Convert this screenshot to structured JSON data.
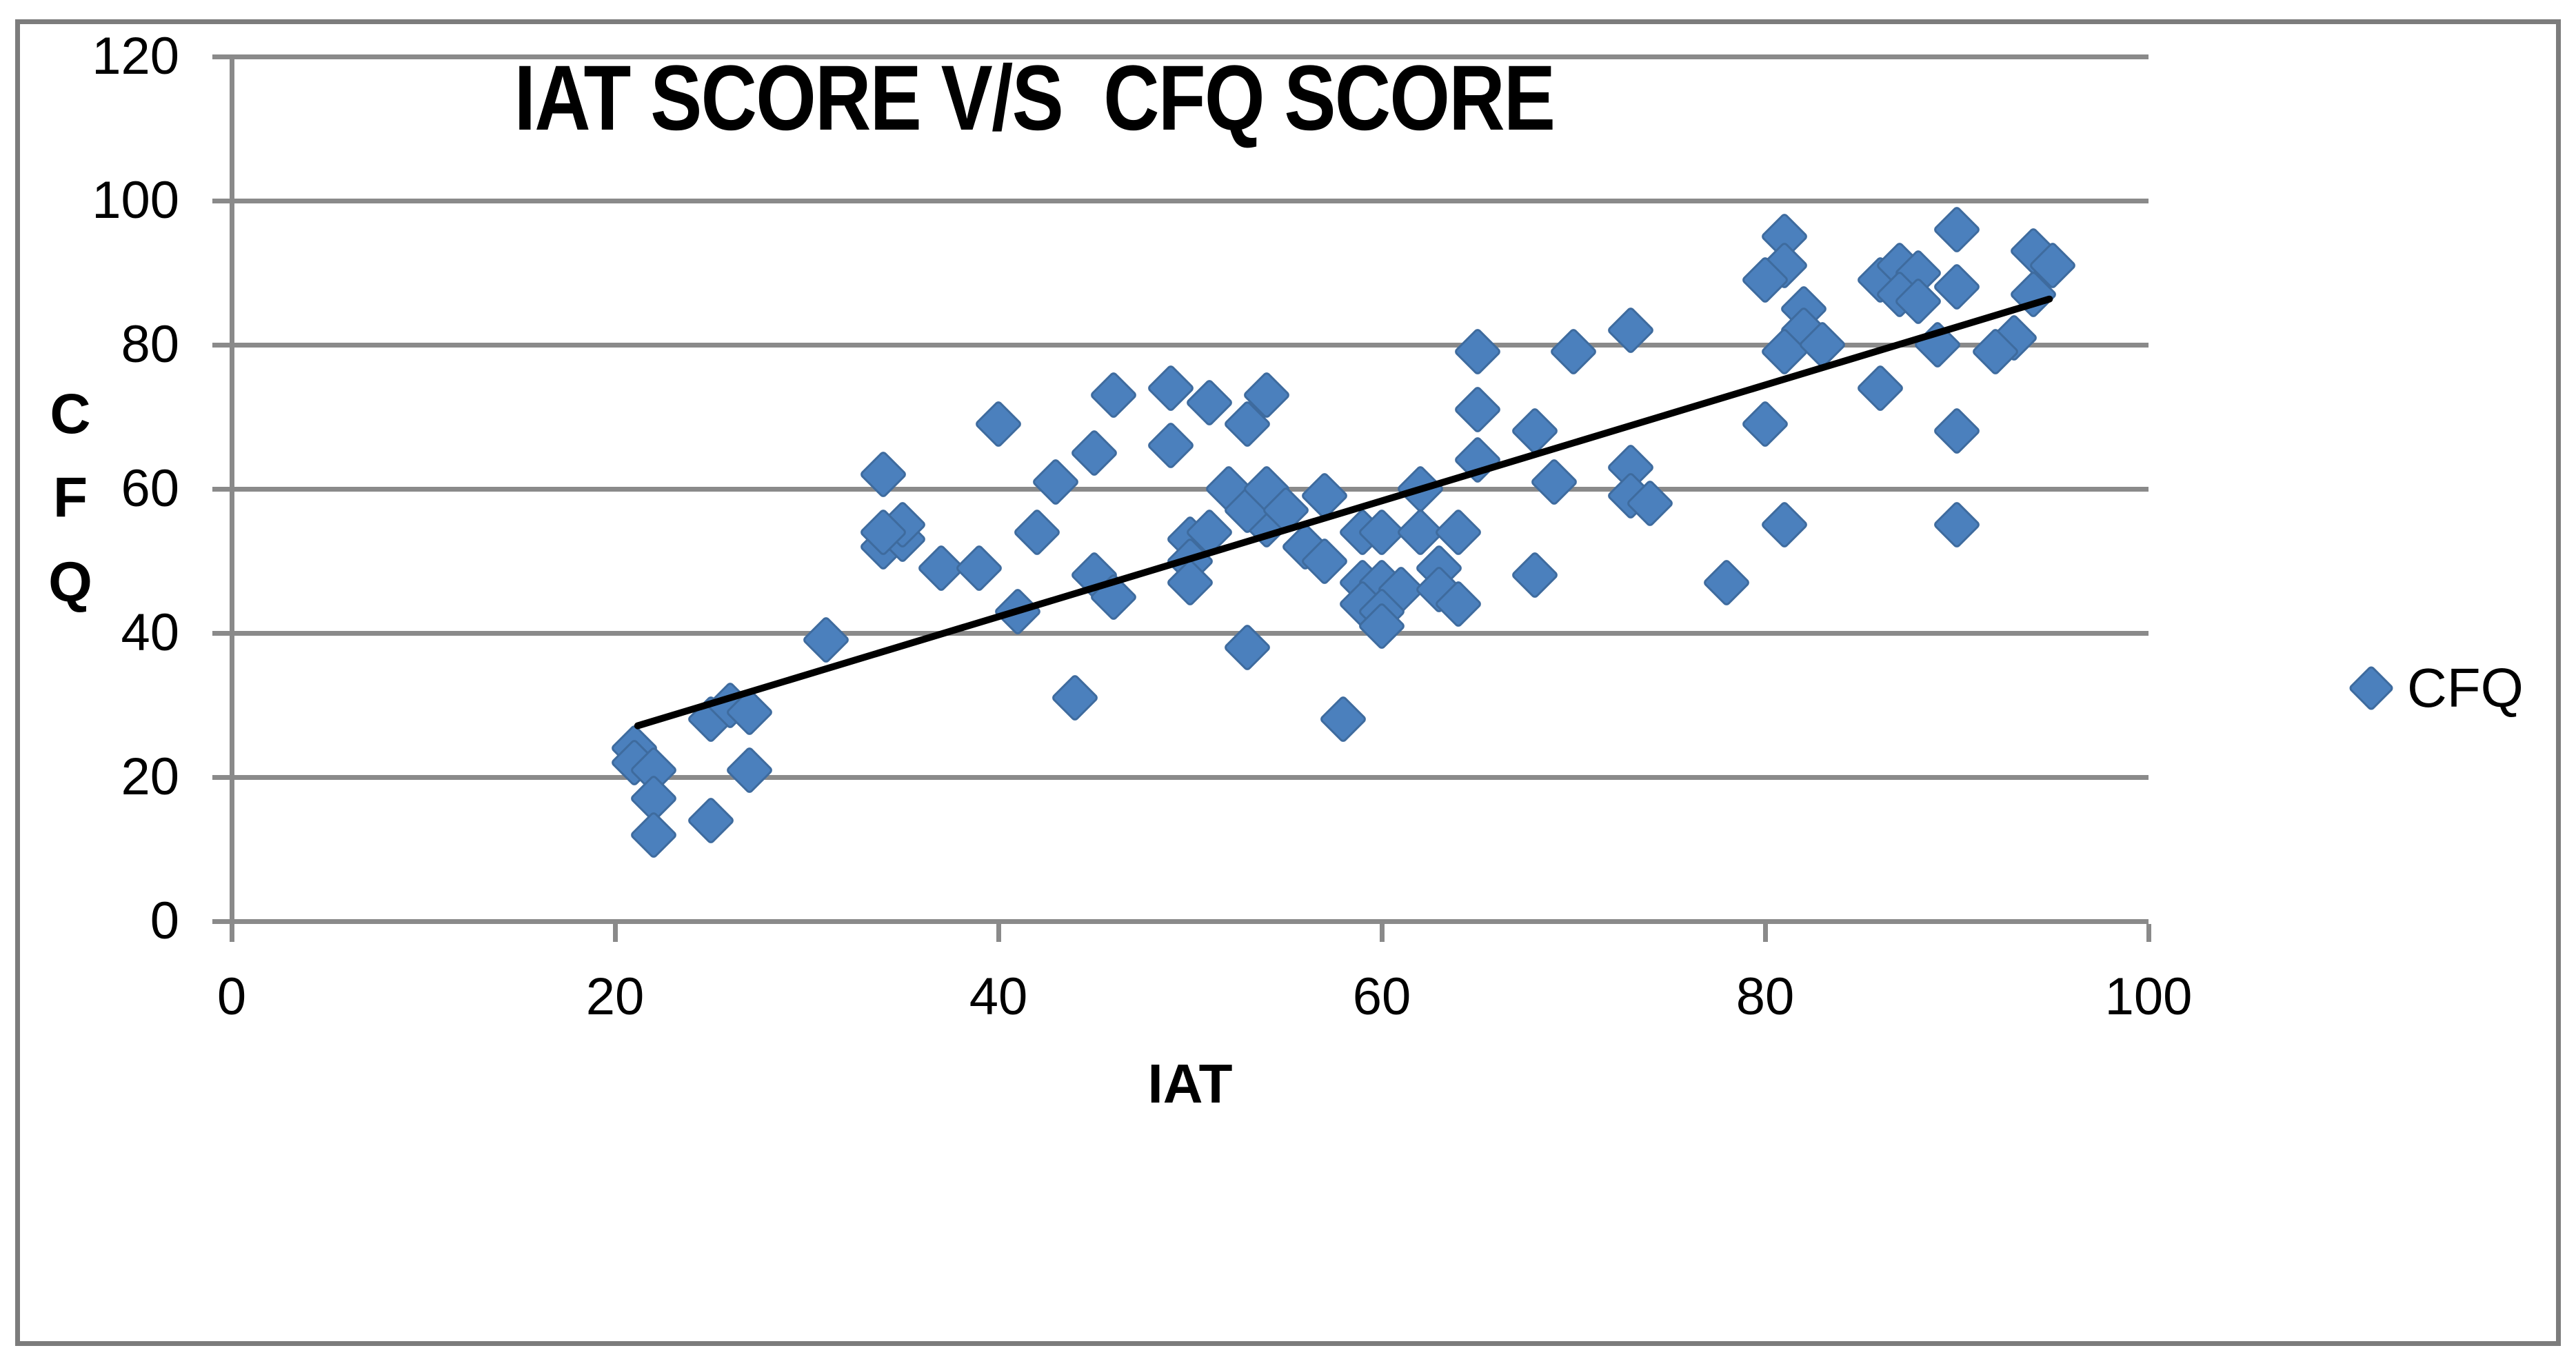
{
  "chart": {
    "title": "IAT SCORE V/S  CFQ SCORE",
    "x_axis": {
      "label": "IAT",
      "ticks": [
        0,
        20,
        40,
        60,
        80,
        100
      ]
    },
    "y_axis": {
      "label_letters": [
        "C",
        "F",
        "Q"
      ],
      "ticks": [
        0,
        20,
        40,
        60,
        80,
        100,
        120
      ]
    },
    "legend": {
      "label": "CFQ"
    },
    "colors": {
      "marker_fill": "#4b80bd",
      "marker_edge": "#3e6b9e",
      "gridline": "#8a8a8a",
      "trendline": "#000000",
      "frame": "#7c7c7c",
      "text": "#000000"
    }
  },
  "chart_data": {
    "type": "scatter",
    "title": "IAT SCORE V/S  CFQ SCORE",
    "xlabel": "IAT",
    "ylabel": "CFQ",
    "xlim": [
      0,
      100
    ],
    "ylim": [
      0,
      120
    ],
    "grid": "horizontal",
    "legend_position": "right",
    "series": [
      {
        "name": "CFQ",
        "points": [
          [
            21,
            24
          ],
          [
            21,
            22
          ],
          [
            22,
            21
          ],
          [
            22,
            17
          ],
          [
            22,
            12
          ],
          [
            25,
            14
          ],
          [
            27,
            21
          ],
          [
            25,
            28
          ],
          [
            26,
            30
          ],
          [
            27,
            29
          ],
          [
            31,
            39
          ],
          [
            34,
            62
          ],
          [
            34,
            52
          ],
          [
            35,
            53
          ],
          [
            35,
            55
          ],
          [
            34,
            54
          ],
          [
            37,
            49
          ],
          [
            39,
            49
          ],
          [
            41,
            43
          ],
          [
            42,
            54
          ],
          [
            44,
            31
          ],
          [
            45,
            48
          ],
          [
            46,
            45
          ],
          [
            40,
            69
          ],
          [
            43,
            61
          ],
          [
            45,
            65
          ],
          [
            46,
            73
          ],
          [
            49,
            74
          ],
          [
            51,
            72
          ],
          [
            54,
            73
          ],
          [
            49,
            66
          ],
          [
            53,
            69
          ],
          [
            50,
            53
          ],
          [
            51,
            54
          ],
          [
            54,
            55
          ],
          [
            52,
            60
          ],
          [
            53,
            57
          ],
          [
            54,
            60
          ],
          [
            55,
            57
          ],
          [
            57,
            59
          ],
          [
            56,
            52
          ],
          [
            57,
            50
          ],
          [
            50,
            50
          ],
          [
            50,
            47
          ],
          [
            59,
            54
          ],
          [
            60,
            54
          ],
          [
            62,
            54
          ],
          [
            64,
            54
          ],
          [
            59,
            47
          ],
          [
            60,
            47
          ],
          [
            61,
            46
          ],
          [
            63,
            49
          ],
          [
            63,
            46
          ],
          [
            64,
            44
          ],
          [
            59,
            44
          ],
          [
            60,
            43
          ],
          [
            60,
            41
          ],
          [
            68,
            48
          ],
          [
            58,
            28
          ],
          [
            53,
            38
          ],
          [
            78,
            47
          ],
          [
            62,
            60
          ],
          [
            65,
            64
          ],
          [
            65,
            71
          ],
          [
            65,
            79
          ],
          [
            70,
            79
          ],
          [
            73,
            82
          ],
          [
            68,
            68
          ],
          [
            69,
            61
          ],
          [
            73,
            63
          ],
          [
            73,
            59
          ],
          [
            74,
            58
          ],
          [
            80,
            69
          ],
          [
            86,
            74
          ],
          [
            90,
            68
          ],
          [
            81,
            95
          ],
          [
            81,
            91
          ],
          [
            80,
            89
          ],
          [
            82,
            85
          ],
          [
            82,
            82
          ],
          [
            81,
            79
          ],
          [
            83,
            80
          ],
          [
            86,
            89
          ],
          [
            87,
            91
          ],
          [
            88,
            90
          ],
          [
            87,
            87
          ],
          [
            88,
            86
          ],
          [
            90,
            96
          ],
          [
            90,
            88
          ],
          [
            89,
            80
          ],
          [
            94,
            93
          ],
          [
            95,
            91
          ],
          [
            94,
            87
          ],
          [
            93,
            81
          ],
          [
            92,
            79
          ],
          [
            90,
            55
          ],
          [
            81,
            55
          ]
        ]
      }
    ],
    "trendline": {
      "x1": 21,
      "y1": 27,
      "x2": 95,
      "y2": 86.5
    }
  }
}
